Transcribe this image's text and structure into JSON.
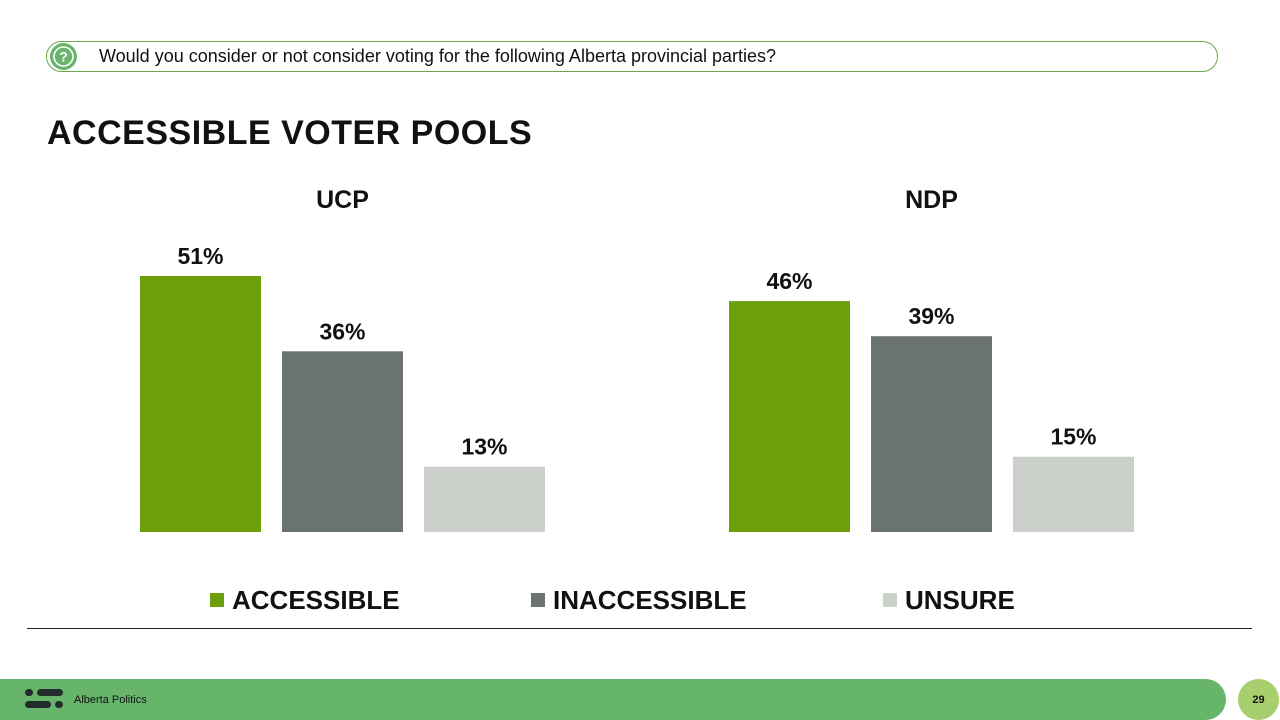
{
  "question": {
    "text": "Would you consider or not consider voting for the following Alberta provincial parties?"
  },
  "title": "ACCESSIBLE VOTER POOLS",
  "colors": {
    "accessible": "#6d9f0a",
    "inaccessible": "#6b7370",
    "unsure": "#cbd0cb",
    "accent_green": "#67b56b"
  },
  "chart_data": {
    "type": "bar",
    "title": "ACCESSIBLE VOTER POOLS",
    "ylim": [
      0,
      55
    ],
    "grid": false,
    "legend_position": "bottom",
    "groups": [
      {
        "name": "UCP",
        "categories": [
          "ACCESSIBLE",
          "INACCESSIBLE",
          "UNSURE"
        ],
        "values": [
          51,
          36,
          13
        ],
        "labels": [
          "51%",
          "36%",
          "13%"
        ]
      },
      {
        "name": "NDP",
        "categories": [
          "ACCESSIBLE",
          "INACCESSIBLE",
          "UNSURE"
        ],
        "values": [
          46,
          39,
          15
        ],
        "labels": [
          "46%",
          "39%",
          "15%"
        ]
      }
    ]
  },
  "legend": [
    {
      "label": "ACCESSIBLE"
    },
    {
      "label": "INACCESSIBLE"
    },
    {
      "label": "UNSURE"
    }
  ],
  "footer": {
    "brand": "Alberta Politics",
    "logo_icon": "company-logo-icon",
    "page_number": "29"
  },
  "icons": {
    "question": "question-mark-icon"
  }
}
